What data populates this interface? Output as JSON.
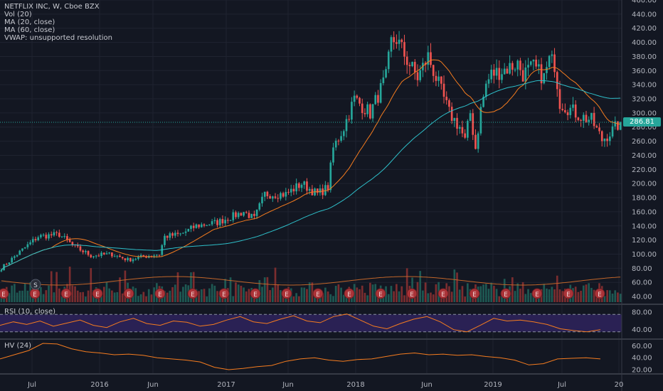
{
  "symbol_legend": {
    "symbol": "NETFLIX INC, W, Cboe BZX",
    "studies": [
      "Vol (20)",
      "MA (20, close)",
      "MA (60, close)",
      "VWAP: unsupported resolution"
    ]
  },
  "panes": {
    "rsi_title": "RSI (10, close)",
    "hv_title": "HV (24)"
  },
  "last_price": "286.81",
  "colors": {
    "background": "#131722",
    "up": "#26a69a",
    "down": "#ef5350",
    "ma20": "#f57c1f",
    "ma60": "#2ebfc9",
    "rsi_line": "#f57c1f",
    "rsi_band": "#2a2154",
    "hv_line": "#f57c1f",
    "earnings_badge": "#ab3338",
    "split_badge": "#2a2e39"
  },
  "earnings_icon": "E",
  "split_icon": "S",
  "chart_data": [
    {
      "type": "candlestick",
      "title": "NETFLIX INC, W, Cboe BZX",
      "x_ticks": [
        "Jul",
        "2016",
        "Jun",
        "2017",
        "Jun",
        "2018",
        "Jun",
        "2019",
        "Jul",
        "20"
      ],
      "ylim": [
        30,
        460
      ],
      "y_ticks": [
        40,
        60,
        80,
        100,
        120,
        140,
        160,
        180,
        200,
        220,
        240,
        260,
        280,
        300,
        320,
        340,
        360,
        380,
        400,
        420,
        440,
        460
      ],
      "price_anchors": [
        [
          0,
          80
        ],
        [
          6,
          100
        ],
        [
          14,
          125
        ],
        [
          22,
          128
        ],
        [
          28,
          110
        ],
        [
          34,
          98
        ],
        [
          42,
          100
        ],
        [
          48,
          92
        ],
        [
          56,
          98
        ],
        [
          60,
          100
        ],
        [
          62,
          125
        ],
        [
          68,
          128
        ],
        [
          74,
          140
        ],
        [
          82,
          145
        ],
        [
          92,
          160
        ],
        [
          96,
          150
        ],
        [
          100,
          185
        ],
        [
          108,
          185
        ],
        [
          114,
          200
        ],
        [
          120,
          185
        ],
        [
          124,
          195
        ],
        [
          126,
          250
        ],
        [
          130,
          280
        ],
        [
          134,
          320
        ],
        [
          140,
          300
        ],
        [
          146,
          350
        ],
        [
          148,
          400
        ],
        [
          150,
          405
        ],
        [
          152,
          390
        ],
        [
          154,
          375
        ],
        [
          158,
          350
        ],
        [
          162,
          380
        ],
        [
          166,
          340
        ],
        [
          170,
          300
        ],
        [
          174,
          280
        ],
        [
          176,
          260
        ],
        [
          178,
          300
        ],
        [
          180,
          250
        ],
        [
          182,
          305
        ],
        [
          184,
          340
        ],
        [
          186,
          355
        ],
        [
          190,
          360
        ],
        [
          196,
          370
        ],
        [
          198,
          355
        ],
        [
          202,
          365
        ],
        [
          206,
          350
        ],
        [
          208,
          375
        ],
        [
          210,
          370
        ],
        [
          212,
          315
        ],
        [
          216,
          305
        ],
        [
          220,
          295
        ],
        [
          224,
          290
        ],
        [
          228,
          262
        ],
        [
          232,
          275
        ],
        [
          235,
          287
        ]
      ],
      "volume_series": "Vol (20)",
      "series": [
        {
          "name": "MA (20, close)",
          "color": "#f57c1f"
        },
        {
          "name": "MA (60, close)",
          "color": "#2ebfc9"
        }
      ],
      "earnings_markers": 20,
      "split_markers": 1,
      "last_price": 286.81
    },
    {
      "type": "line",
      "title": "RSI (10, close)",
      "ylim": [
        20,
        95
      ],
      "y_ticks": [
        40,
        80
      ],
      "bands": [
        35,
        75
      ],
      "values": [
        50,
        58,
        52,
        60,
        48,
        55,
        62,
        50,
        45,
        58,
        66,
        54,
        50,
        60,
        57,
        48,
        52,
        62,
        70,
        58,
        54,
        64,
        72,
        60,
        56,
        70,
        76,
        62,
        48,
        42,
        54,
        64,
        70,
        58,
        40,
        35,
        50,
        66,
        60,
        62,
        58,
        52,
        42,
        38,
        35,
        40
      ]
    },
    {
      "type": "line",
      "title": "HV (24)",
      "ylim": [
        14,
        70
      ],
      "y_ticks": [
        20,
        40,
        60
      ],
      "values": [
        38,
        45,
        52,
        64,
        63,
        55,
        50,
        48,
        45,
        46,
        44,
        40,
        38,
        36,
        33,
        24,
        20,
        22,
        25,
        27,
        34,
        38,
        40,
        36,
        34,
        37,
        38,
        42,
        46,
        48,
        45,
        46,
        44,
        45,
        42,
        40,
        36,
        28,
        30,
        38,
        39,
        40,
        38
      ]
    }
  ]
}
